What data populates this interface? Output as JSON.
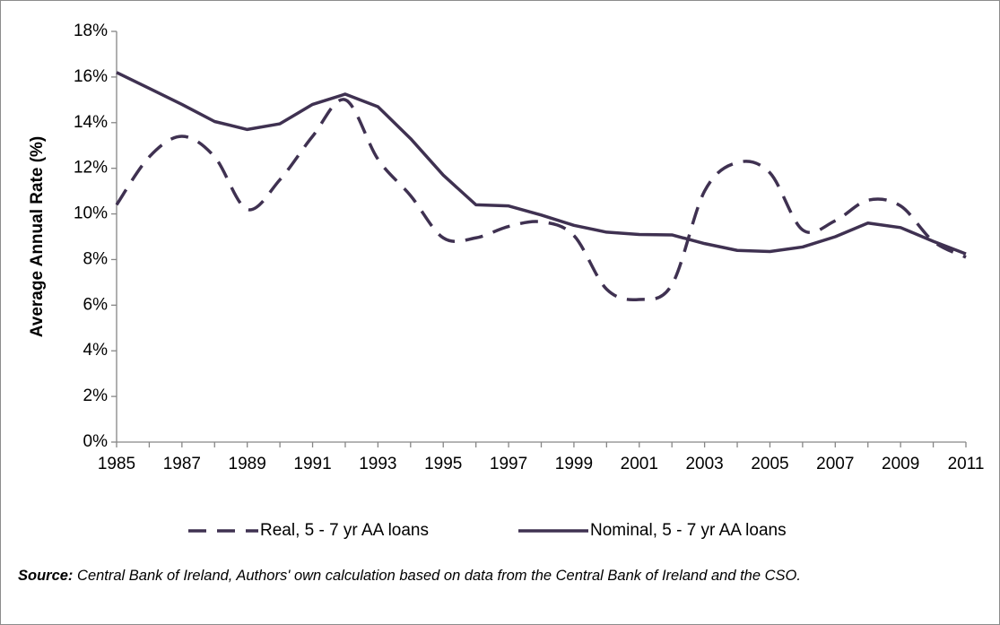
{
  "chart_data": {
    "type": "line",
    "y_axis_label": "Average Annual Rate (%)",
    "categories": [
      "1985",
      null,
      "1987",
      null,
      "1989",
      null,
      "1991",
      null,
      "1993",
      null,
      "1995",
      null,
      "1997",
      null,
      "1999",
      null,
      "2001",
      null,
      "2003",
      null,
      "2005",
      null,
      "2007",
      null,
      "2009",
      null,
      "2011"
    ],
    "series": [
      {
        "name": "Real, 5 - 7 yr AA loans",
        "color": "#3f3151",
        "line_style": "dashed",
        "smooth": true,
        "values": [
          10.4,
          12.5,
          13.4,
          12.5,
          10.2,
          11.5,
          13.4,
          15.0,
          12.4,
          10.8,
          8.95,
          8.95,
          9.45,
          9.65,
          9.05,
          6.7,
          6.25,
          6.9,
          11.0,
          12.25,
          11.8,
          9.3,
          9.7,
          10.6,
          10.35,
          8.8,
          8.1
        ]
      },
      {
        "name": "Nominal, 5 - 7 yr AA loans",
        "color": "#3f3151",
        "line_style": "solid",
        "smooth": false,
        "values": [
          16.2,
          15.5,
          14.8,
          14.05,
          13.7,
          13.95,
          14.8,
          15.25,
          14.7,
          13.3,
          11.7,
          10.4,
          10.35,
          9.95,
          9.5,
          9.2,
          9.1,
          9.08,
          8.7,
          8.4,
          8.35,
          8.55,
          9.0,
          9.6,
          9.4,
          8.8,
          8.25
        ]
      }
    ],
    "ylim": [
      0,
      18
    ],
    "yticks": [
      {
        "value": 0,
        "label": "0%"
      },
      {
        "value": 2,
        "label": "2%"
      },
      {
        "value": 4,
        "label": "4%"
      },
      {
        "value": 6,
        "label": "6%"
      },
      {
        "value": 8,
        "label": "8%"
      },
      {
        "value": 10,
        "label": "10%"
      },
      {
        "value": 12,
        "label": "12%"
      },
      {
        "value": 14,
        "label": "14%"
      },
      {
        "value": 16,
        "label": "16%"
      },
      {
        "value": 18,
        "label": "18%"
      }
    ],
    "grid": false,
    "legend": "bottom",
    "source_label": "Source:",
    "source_text": "Central Bank of Ireland, Authors' own calculation based on data from the Central Bank of Ireland and  the CSO."
  }
}
